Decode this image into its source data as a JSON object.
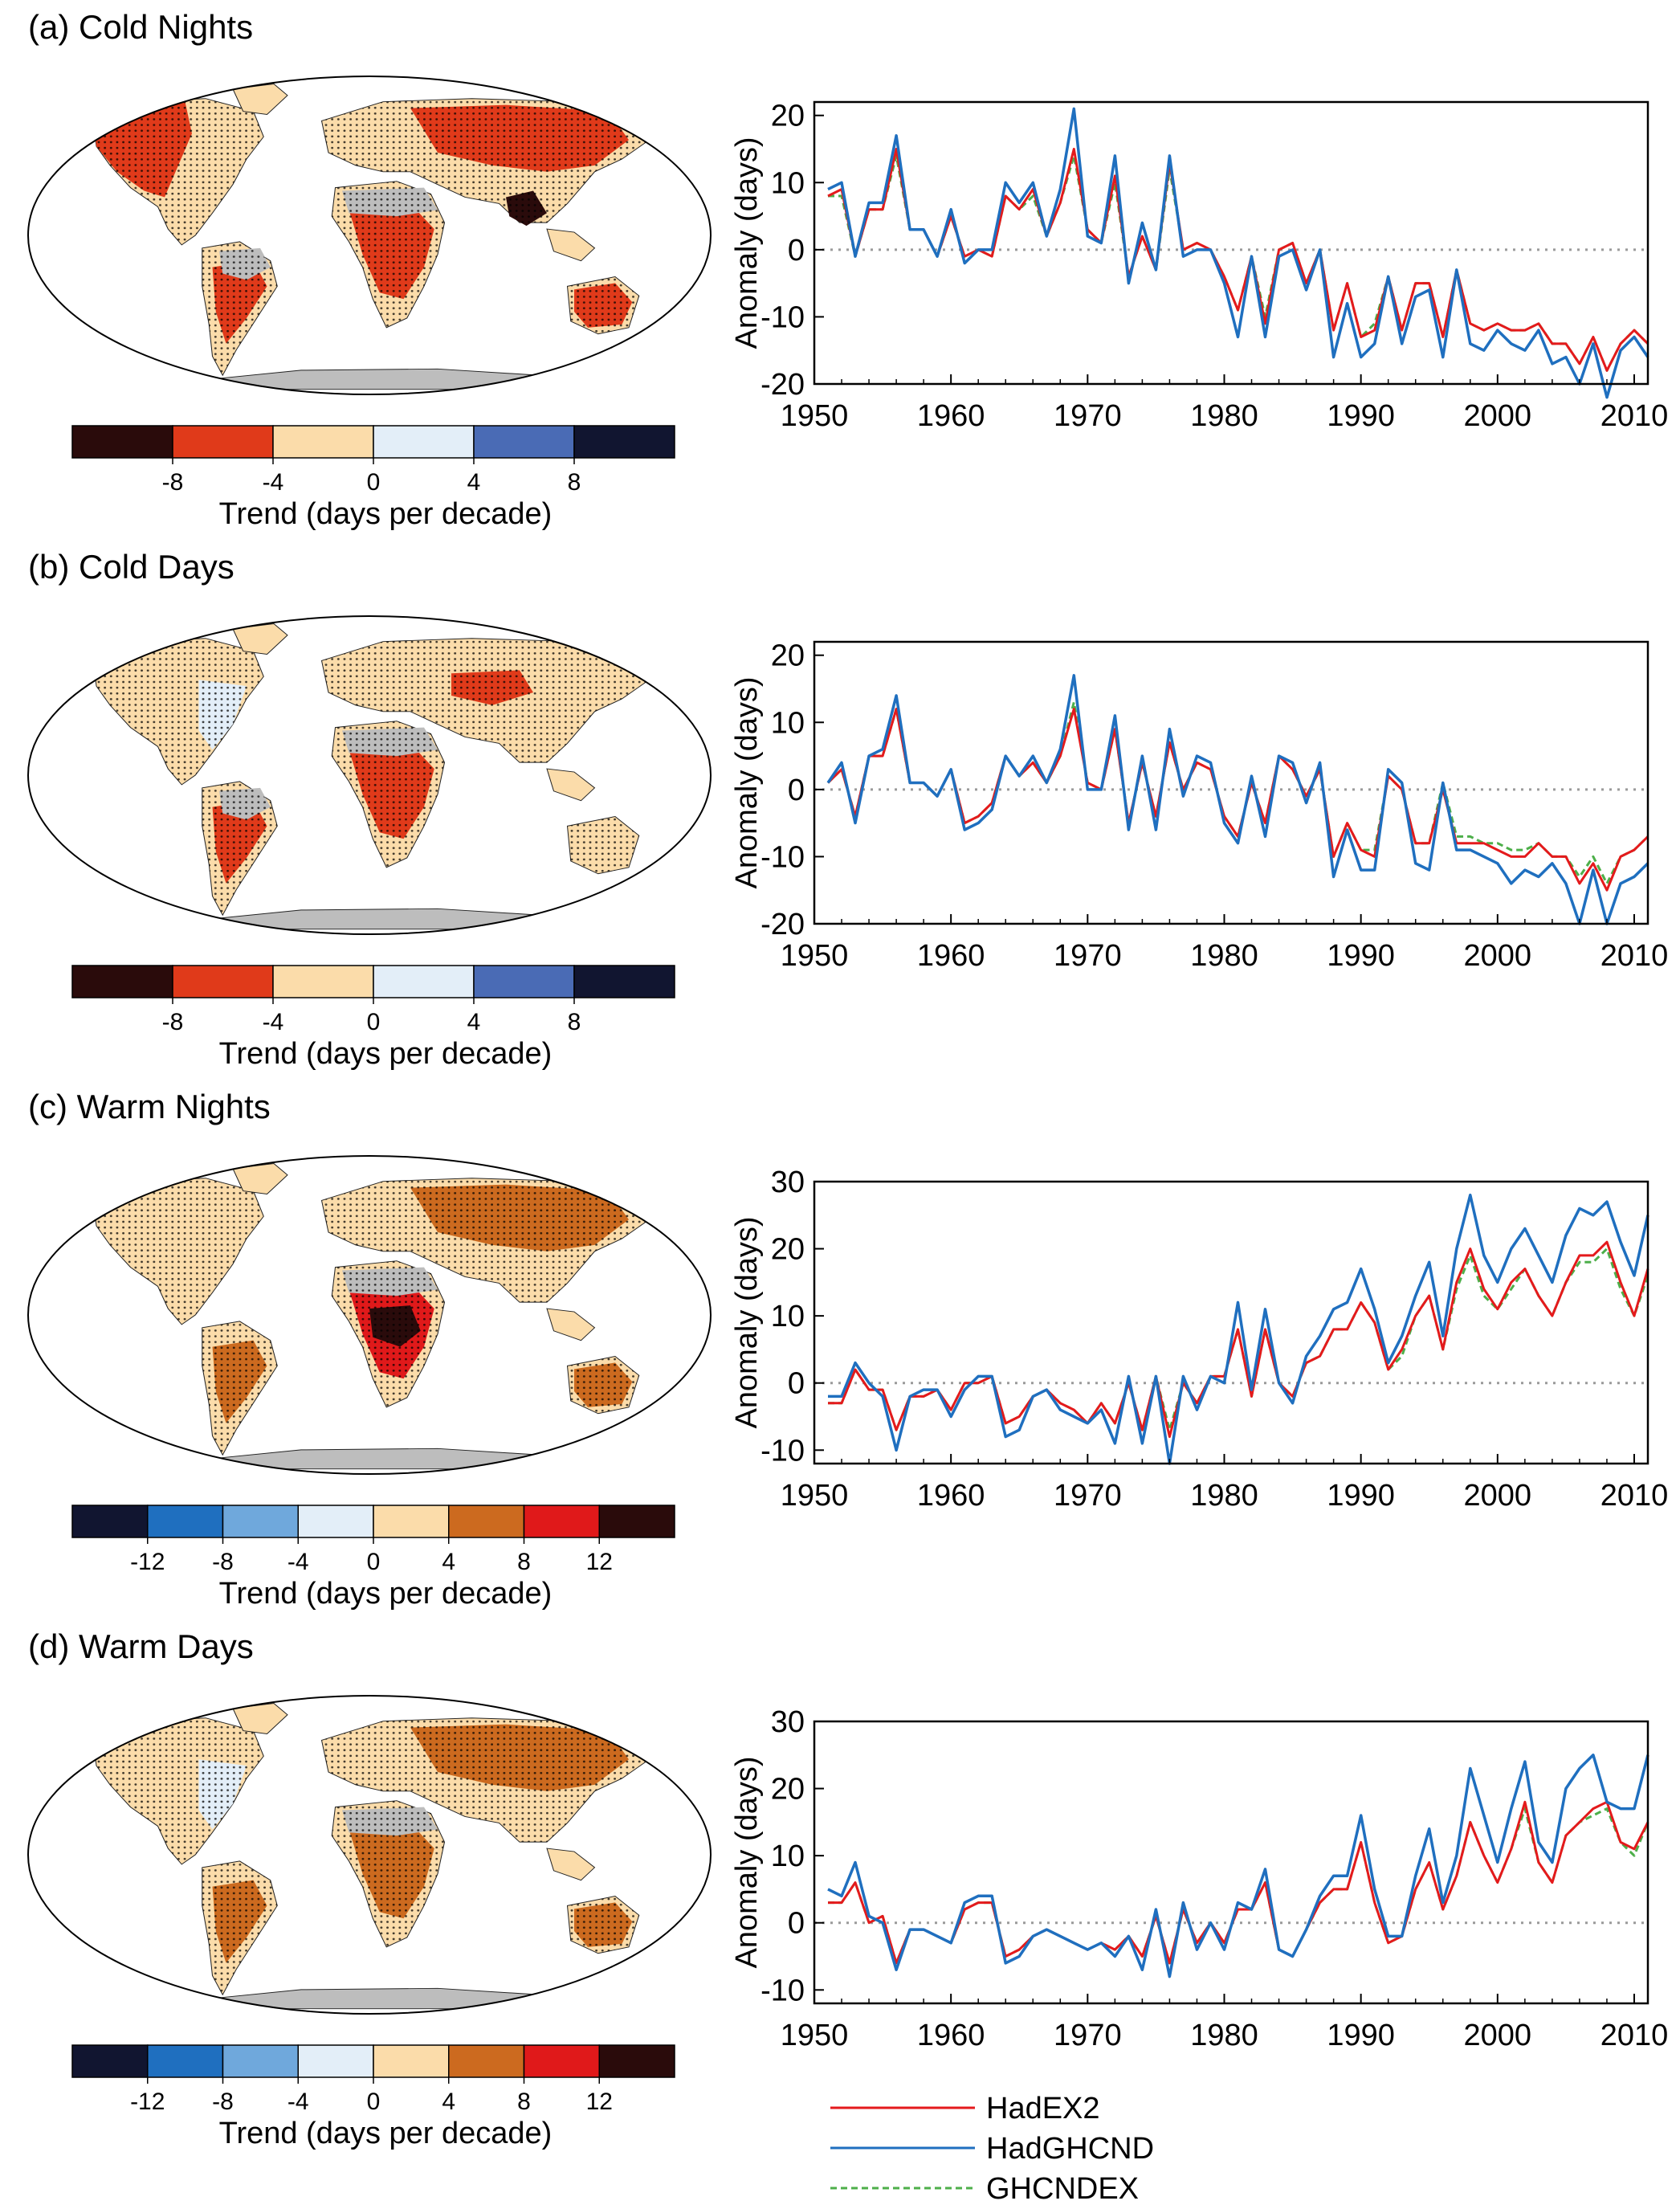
{
  "colors": {
    "hadex2": "#e41a1c",
    "hadghcnd": "#1f6fbf",
    "ghcndex": "#4daf4a",
    "land_nodata": "#bdbdbd",
    "zero_line": "#9a9a9a"
  },
  "legend": {
    "entries": [
      {
        "name": "HadEX2",
        "style": "solid",
        "color": "#e41a1c"
      },
      {
        "name": "HadGHCND",
        "style": "solid",
        "color": "#1f6fbf"
      },
      {
        "name": "GHCNDEX",
        "style": "dashed",
        "color": "#4daf4a"
      }
    ]
  },
  "chart_data": [
    {
      "panel": "(a) Cold Nights",
      "type": "line",
      "ylabel": "Anomaly (days)",
      "xlabel": "",
      "xlim": [
        1950,
        2011
      ],
      "ylim": [
        -20,
        22
      ],
      "xticks": [
        1950,
        1960,
        1970,
        1980,
        1990,
        2000,
        2010
      ],
      "yticks": [
        -20,
        -10,
        0,
        10,
        20
      ],
      "x_start": 1951,
      "series": [
        {
          "name": "HadEX2",
          "values": [
            8,
            9,
            -1,
            6,
            6,
            15,
            3,
            3,
            -1,
            5,
            -1,
            0,
            -1,
            8,
            6,
            9,
            2,
            7,
            15,
            3,
            1,
            11,
            -4,
            2,
            -3,
            13,
            0,
            1,
            0,
            -4,
            -9,
            -1,
            -11,
            0,
            1,
            -5,
            0,
            -12,
            -5,
            -13,
            -12,
            -4,
            -12,
            -5,
            -5,
            -13,
            -3,
            -11,
            -12,
            -11,
            -12,
            -12,
            -11,
            -14,
            -14,
            -17,
            -13,
            -18,
            -14,
            -12,
            -14
          ]
        },
        {
          "name": "HadGHCND",
          "values": [
            9,
            10,
            -1,
            7,
            7,
            17,
            3,
            3,
            -1,
            6,
            -2,
            0,
            0,
            10,
            7,
            10,
            2,
            9,
            21,
            2,
            1,
            14,
            -5,
            4,
            -3,
            14,
            -1,
            0,
            0,
            -5,
            -13,
            -1,
            -13,
            -1,
            0,
            -6,
            0,
            -16,
            -8,
            -16,
            -14,
            -4,
            -14,
            -7,
            -6,
            -16,
            -3,
            -14,
            -15,
            -12,
            -14,
            -15,
            -12,
            -17,
            -16,
            -20,
            -14,
            -22,
            -15,
            -13,
            -16
          ]
        },
        {
          "name": "GHCNDEX",
          "values": [
            8,
            8,
            -1,
            6,
            6,
            14,
            3,
            3,
            -1,
            5,
            -1,
            0,
            -1,
            8,
            6,
            8,
            2,
            7,
            14,
            3,
            1,
            10,
            -4,
            2,
            -3,
            12,
            0,
            1,
            0,
            -4,
            -9,
            -1,
            -10,
            0,
            1,
            -5,
            0,
            -12,
            -5,
            -13,
            -11,
            -4,
            -12,
            -5,
            -5,
            -13,
            -3,
            -11,
            -12,
            -11,
            -12,
            -12,
            -11,
            -14,
            -14,
            -17,
            -13,
            -18,
            -14,
            -12,
            -14
          ]
        }
      ]
    },
    {
      "panel": "(b) Cold Days",
      "type": "line",
      "ylabel": "Anomaly (days)",
      "xlabel": "",
      "xlim": [
        1950,
        2011
      ],
      "ylim": [
        -20,
        22
      ],
      "xticks": [
        1950,
        1960,
        1970,
        1980,
        1990,
        2000,
        2010
      ],
      "yticks": [
        -20,
        -10,
        0,
        10,
        20
      ],
      "x_start": 1951,
      "series": [
        {
          "name": "HadEX2",
          "values": [
            1,
            3,
            -4,
            5,
            5,
            12,
            1,
            1,
            -1,
            3,
            -5,
            -4,
            -2,
            5,
            2,
            4,
            1,
            5,
            12,
            1,
            0,
            9,
            -5,
            4,
            -4,
            7,
            0,
            4,
            3,
            -4,
            -7,
            1,
            -5,
            5,
            3,
            -1,
            3,
            -10,
            -5,
            -9,
            -10,
            2,
            0,
            -8,
            -8,
            0,
            -8,
            -8,
            -8,
            -9,
            -10,
            -10,
            -8,
            -10,
            -10,
            -14,
            -11,
            -15,
            -10,
            -9,
            -7
          ]
        },
        {
          "name": "HadGHCND",
          "values": [
            1,
            4,
            -5,
            5,
            6,
            14,
            1,
            1,
            -1,
            3,
            -6,
            -5,
            -3,
            5,
            2,
            5,
            1,
            6,
            17,
            0,
            0,
            11,
            -6,
            5,
            -6,
            9,
            -1,
            5,
            4,
            -5,
            -8,
            2,
            -7,
            5,
            4,
            -2,
            4,
            -13,
            -6,
            -12,
            -12,
            3,
            1,
            -11,
            -12,
            1,
            -9,
            -9,
            -10,
            -11,
            -14,
            -12,
            -13,
            -11,
            -14,
            -20,
            -12,
            -20,
            -14,
            -13,
            -11
          ]
        },
        {
          "name": "GHCNDEX",
          "values": [
            1,
            3,
            -4,
            5,
            5,
            12,
            1,
            1,
            -1,
            3,
            -5,
            -4,
            -2,
            5,
            2,
            4,
            1,
            5,
            13,
            1,
            0,
            9,
            -5,
            4,
            -4,
            7,
            0,
            4,
            3,
            -4,
            -7,
            1,
            -5,
            5,
            3,
            -1,
            3,
            -10,
            -5,
            -9,
            -9,
            2,
            0,
            -8,
            -8,
            1,
            -7,
            -7,
            -8,
            -8,
            -9,
            -9,
            -8,
            -10,
            -10,
            -13,
            -10,
            -14,
            -10,
            -9,
            -7
          ]
        }
      ]
    },
    {
      "panel": "(c) Warm Nights",
      "type": "line",
      "ylabel": "Anomaly (days)",
      "xlabel": "",
      "xlim": [
        1950,
        2011
      ],
      "ylim": [
        -12,
        30
      ],
      "xticks": [
        1950,
        1960,
        1970,
        1980,
        1990,
        2000,
        2010
      ],
      "yticks": [
        -10,
        0,
        10,
        20,
        30
      ],
      "x_start": 1951,
      "series": [
        {
          "name": "HadEX2",
          "values": [
            -3,
            -3,
            2,
            -1,
            -1,
            -7,
            -2,
            -2,
            -1,
            -4,
            0,
            0,
            1,
            -6,
            -5,
            -2,
            -1,
            -3,
            -4,
            -6,
            -3,
            -6,
            0,
            -7,
            1,
            -8,
            0,
            -3,
            1,
            1,
            8,
            -2,
            8,
            0,
            -2,
            3,
            4,
            8,
            8,
            12,
            9,
            2,
            5,
            10,
            13,
            5,
            15,
            20,
            14,
            11,
            15,
            17,
            13,
            10,
            15,
            19,
            19,
            21,
            15,
            10,
            17
          ]
        },
        {
          "name": "HadGHCND",
          "values": [
            -2,
            -2,
            3,
            0,
            -2,
            -10,
            -2,
            -1,
            -1,
            -5,
            -1,
            1,
            1,
            -8,
            -7,
            -2,
            -1,
            -4,
            -5,
            -6,
            -4,
            -9,
            1,
            -9,
            1,
            -12,
            1,
            -4,
            1,
            0,
            12,
            -1,
            11,
            0,
            -3,
            4,
            7,
            11,
            12,
            17,
            11,
            3,
            7,
            13,
            18,
            7,
            20,
            28,
            19,
            15,
            20,
            23,
            19,
            15,
            22,
            26,
            25,
            27,
            21,
            16,
            25
          ]
        },
        {
          "name": "GHCNDEX",
          "values": [
            -3,
            -3,
            2,
            -1,
            -1,
            -7,
            -2,
            -2,
            -1,
            -4,
            0,
            0,
            1,
            -6,
            -5,
            -2,
            -1,
            -3,
            -4,
            -6,
            -3,
            -6,
            0,
            -7,
            1,
            -7,
            0,
            -3,
            1,
            1,
            8,
            -2,
            8,
            0,
            -2,
            3,
            4,
            8,
            8,
            12,
            9,
            2,
            4,
            10,
            13,
            5,
            14,
            19,
            13,
            11,
            14,
            17,
            13,
            10,
            15,
            18,
            18,
            20,
            14,
            10,
            16
          ]
        }
      ]
    },
    {
      "panel": "(d) Warm Days",
      "type": "line",
      "ylabel": "Anomaly (days)",
      "xlabel": "",
      "xlim": [
        1950,
        2011
      ],
      "ylim": [
        -12,
        30
      ],
      "xticks": [
        1950,
        1960,
        1970,
        1980,
        1990,
        2000,
        2010
      ],
      "yticks": [
        -10,
        0,
        10,
        20,
        30
      ],
      "x_start": 1951,
      "series": [
        {
          "name": "HadEX2",
          "values": [
            3,
            3,
            6,
            0,
            1,
            -6,
            -1,
            -1,
            -2,
            -3,
            2,
            3,
            3,
            -5,
            -4,
            -2,
            -1,
            -2,
            -3,
            -4,
            -3,
            -4,
            -2,
            -5,
            1,
            -6,
            2,
            -3,
            0,
            -3,
            2,
            2,
            6,
            -4,
            -5,
            -1,
            3,
            5,
            5,
            12,
            3,
            -3,
            -2,
            5,
            9,
            2,
            7,
            15,
            10,
            6,
            11,
            18,
            9,
            6,
            13,
            15,
            17,
            18,
            12,
            11,
            15
          ]
        },
        {
          "name": "HadGHCND",
          "values": [
            5,
            4,
            9,
            1,
            0,
            -7,
            -1,
            -1,
            -2,
            -3,
            3,
            4,
            4,
            -6,
            -5,
            -2,
            -1,
            -2,
            -3,
            -4,
            -3,
            -5,
            -2,
            -7,
            2,
            -8,
            3,
            -4,
            0,
            -4,
            3,
            2,
            8,
            -4,
            -5,
            -1,
            4,
            7,
            7,
            16,
            5,
            -2,
            -2,
            7,
            14,
            3,
            10,
            23,
            16,
            9,
            17,
            24,
            12,
            9,
            20,
            23,
            25,
            18,
            17,
            17,
            25
          ]
        },
        {
          "name": "GHCNDEX",
          "values": [
            3,
            3,
            6,
            0,
            1,
            -6,
            -1,
            -1,
            -2,
            -3,
            2,
            3,
            3,
            -5,
            -4,
            -2,
            -1,
            -2,
            -3,
            -4,
            -3,
            -4,
            -2,
            -5,
            1,
            -6,
            2,
            -3,
            0,
            -3,
            2,
            2,
            6,
            -4,
            -5,
            -1,
            3,
            5,
            5,
            12,
            3,
            -3,
            -2,
            5,
            9,
            2,
            7,
            15,
            10,
            6,
            11,
            17,
            9,
            6,
            13,
            15,
            16,
            17,
            12,
            10,
            15
          ]
        }
      ]
    }
  ],
  "maps": [
    {
      "title": "(a) Cold Nights",
      "colorbar": {
        "label": "Trend (days per decade)",
        "tick_labels": [
          "-8",
          "-4",
          "0",
          "4",
          "8"
        ],
        "colors": [
          "#2a0b0b",
          "#e03a1a",
          "#fbdcaa",
          "#e3eef8",
          "#4a6bb5",
          "#111530"
        ]
      },
      "land_color": "#fbdcaa",
      "patches": [
        {
          "region": "north-america-west",
          "color": "#e03a1a"
        },
        {
          "region": "eurasia",
          "color": "#e03a1a"
        },
        {
          "region": "south-america",
          "color": "#e03a1a"
        },
        {
          "region": "africa",
          "color": "#e03a1a"
        },
        {
          "region": "australia",
          "color": "#e03a1a"
        },
        {
          "region": "south-asia",
          "color": "#2a0b0b"
        },
        {
          "region": "sahara",
          "color": "#bdbdbd"
        },
        {
          "region": "amazon",
          "color": "#bdbdbd"
        }
      ]
    },
    {
      "title": "(b) Cold Days",
      "colorbar": {
        "label": "Trend (days per decade)",
        "tick_labels": [
          "-8",
          "-4",
          "0",
          "4",
          "8"
        ],
        "colors": [
          "#2a0b0b",
          "#e03a1a",
          "#fbdcaa",
          "#e3eef8",
          "#4a6bb5",
          "#111530"
        ]
      },
      "land_color": "#fbdcaa",
      "patches": [
        {
          "region": "central-asia",
          "color": "#e03a1a"
        },
        {
          "region": "africa",
          "color": "#e03a1a"
        },
        {
          "region": "south-america",
          "color": "#e03a1a"
        },
        {
          "region": "north-america-east",
          "color": "#e3eef8"
        },
        {
          "region": "sahara",
          "color": "#bdbdbd"
        },
        {
          "region": "amazon",
          "color": "#bdbdbd"
        }
      ]
    },
    {
      "title": "(c) Warm Nights",
      "colorbar": {
        "label": "Trend (days per decade)",
        "tick_labels": [
          "-12",
          "-8",
          "-4",
          "0",
          "4",
          "8",
          "12"
        ],
        "colors": [
          "#111530",
          "#1f6fbf",
          "#6fa8dc",
          "#e3eef8",
          "#fbdcaa",
          "#cc6a1f",
          "#e0191a",
          "#2a0b0b"
        ]
      },
      "land_color": "#fbdcaa",
      "patches": [
        {
          "region": "eurasia",
          "color": "#cc6a1f"
        },
        {
          "region": "africa",
          "color": "#e0191a"
        },
        {
          "region": "central-africa",
          "color": "#2a0b0b"
        },
        {
          "region": "south-america",
          "color": "#cc6a1f"
        },
        {
          "region": "australia",
          "color": "#cc6a1f"
        },
        {
          "region": "sahara",
          "color": "#bdbdbd"
        }
      ]
    },
    {
      "title": "(d) Warm Days",
      "colorbar": {
        "label": "Trend (days per decade)",
        "tick_labels": [
          "-12",
          "-8",
          "-4",
          "0",
          "4",
          "8",
          "12"
        ],
        "colors": [
          "#111530",
          "#1f6fbf",
          "#6fa8dc",
          "#e3eef8",
          "#fbdcaa",
          "#cc6a1f",
          "#e0191a",
          "#2a0b0b"
        ]
      },
      "land_color": "#fbdcaa",
      "patches": [
        {
          "region": "eurasia",
          "color": "#cc6a1f"
        },
        {
          "region": "africa",
          "color": "#cc6a1f"
        },
        {
          "region": "south-america",
          "color": "#cc6a1f"
        },
        {
          "region": "north-america-east",
          "color": "#e3eef8"
        },
        {
          "region": "australia",
          "color": "#cc6a1f"
        },
        {
          "region": "sahara",
          "color": "#bdbdbd"
        }
      ]
    }
  ]
}
